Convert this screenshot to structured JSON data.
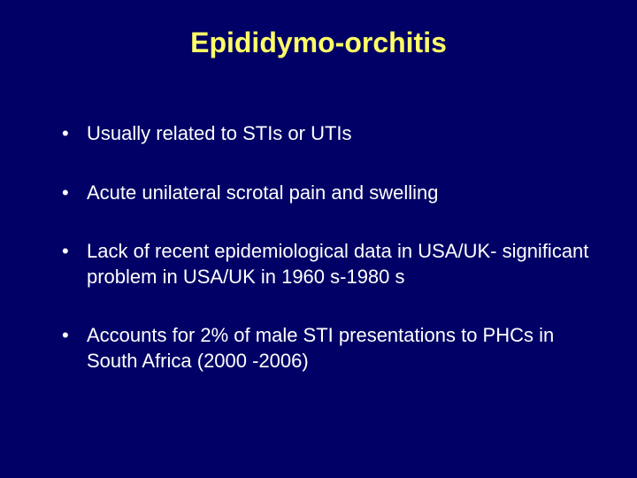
{
  "slide": {
    "title": "Epididymo-orchitis",
    "bullets": [
      "Usually related to STIs or UTIs",
      "Acute unilateral scrotal pain and swelling",
      "Lack of recent epidemiological data in USA/UK- significant problem in USA/UK in 1960 s-1980 s",
      "Accounts for 2% of male STI presentations to PHCs in South Africa (2000 -2006)"
    ]
  },
  "styling": {
    "background_color": "#000066",
    "title_color": "#ffff66",
    "text_color": "#ffffff",
    "title_fontsize": 32,
    "body_fontsize": 22,
    "font_family": "Arial",
    "slide_width": 720,
    "slide_height": 540
  }
}
